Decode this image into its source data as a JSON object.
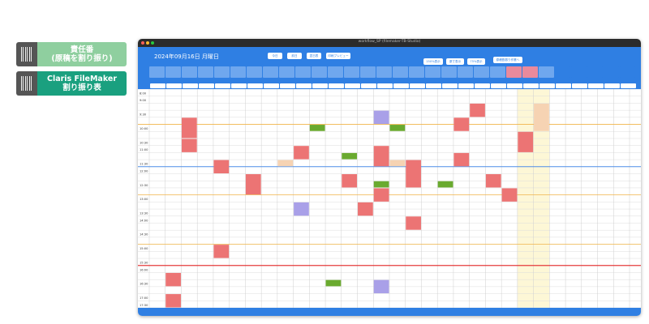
{
  "labels": [
    {
      "line1": "責任番",
      "line2": "(原稿を割り振り)"
    },
    {
      "line1": "Claris FileMaker",
      "line2": "割り振り表"
    }
  ],
  "window": {
    "title": "workflow_SP (filemaker-TB-Studio)"
  },
  "header": {
    "date": "2024年09月16日 月曜日",
    "buttons": [
      "今日",
      "前日",
      "翌日表",
      "印刷プレビュー",
      "150%表示",
      "原寸表示",
      "75%表示",
      "原稿割振り作業へ"
    ]
  },
  "times": [
    "8:00",
    "9:00",
    "",
    "9:30",
    "",
    "10:00",
    "",
    "10:30",
    "11:00",
    "",
    "11:30",
    "12:00",
    "",
    "12:30",
    "",
    "13:00",
    "",
    "13:30",
    "14:00",
    "",
    "14:30",
    "",
    "15:00",
    "",
    "15:30",
    "16:00",
    "",
    "16:30",
    "",
    "17:00",
    "17:30"
  ],
  "colors": {
    "header_blue": "#2f7fe3",
    "event_red": "#ec7474",
    "event_green": "#6aaa2f",
    "event_purple": "#a9a0e8",
    "event_peach": "#f6d3b3",
    "highlight_yellow": "#fdf7d6",
    "line_orange": "#f2b64a",
    "line_red": "#e53b3b",
    "line_blue": "#4f8ee8"
  }
}
